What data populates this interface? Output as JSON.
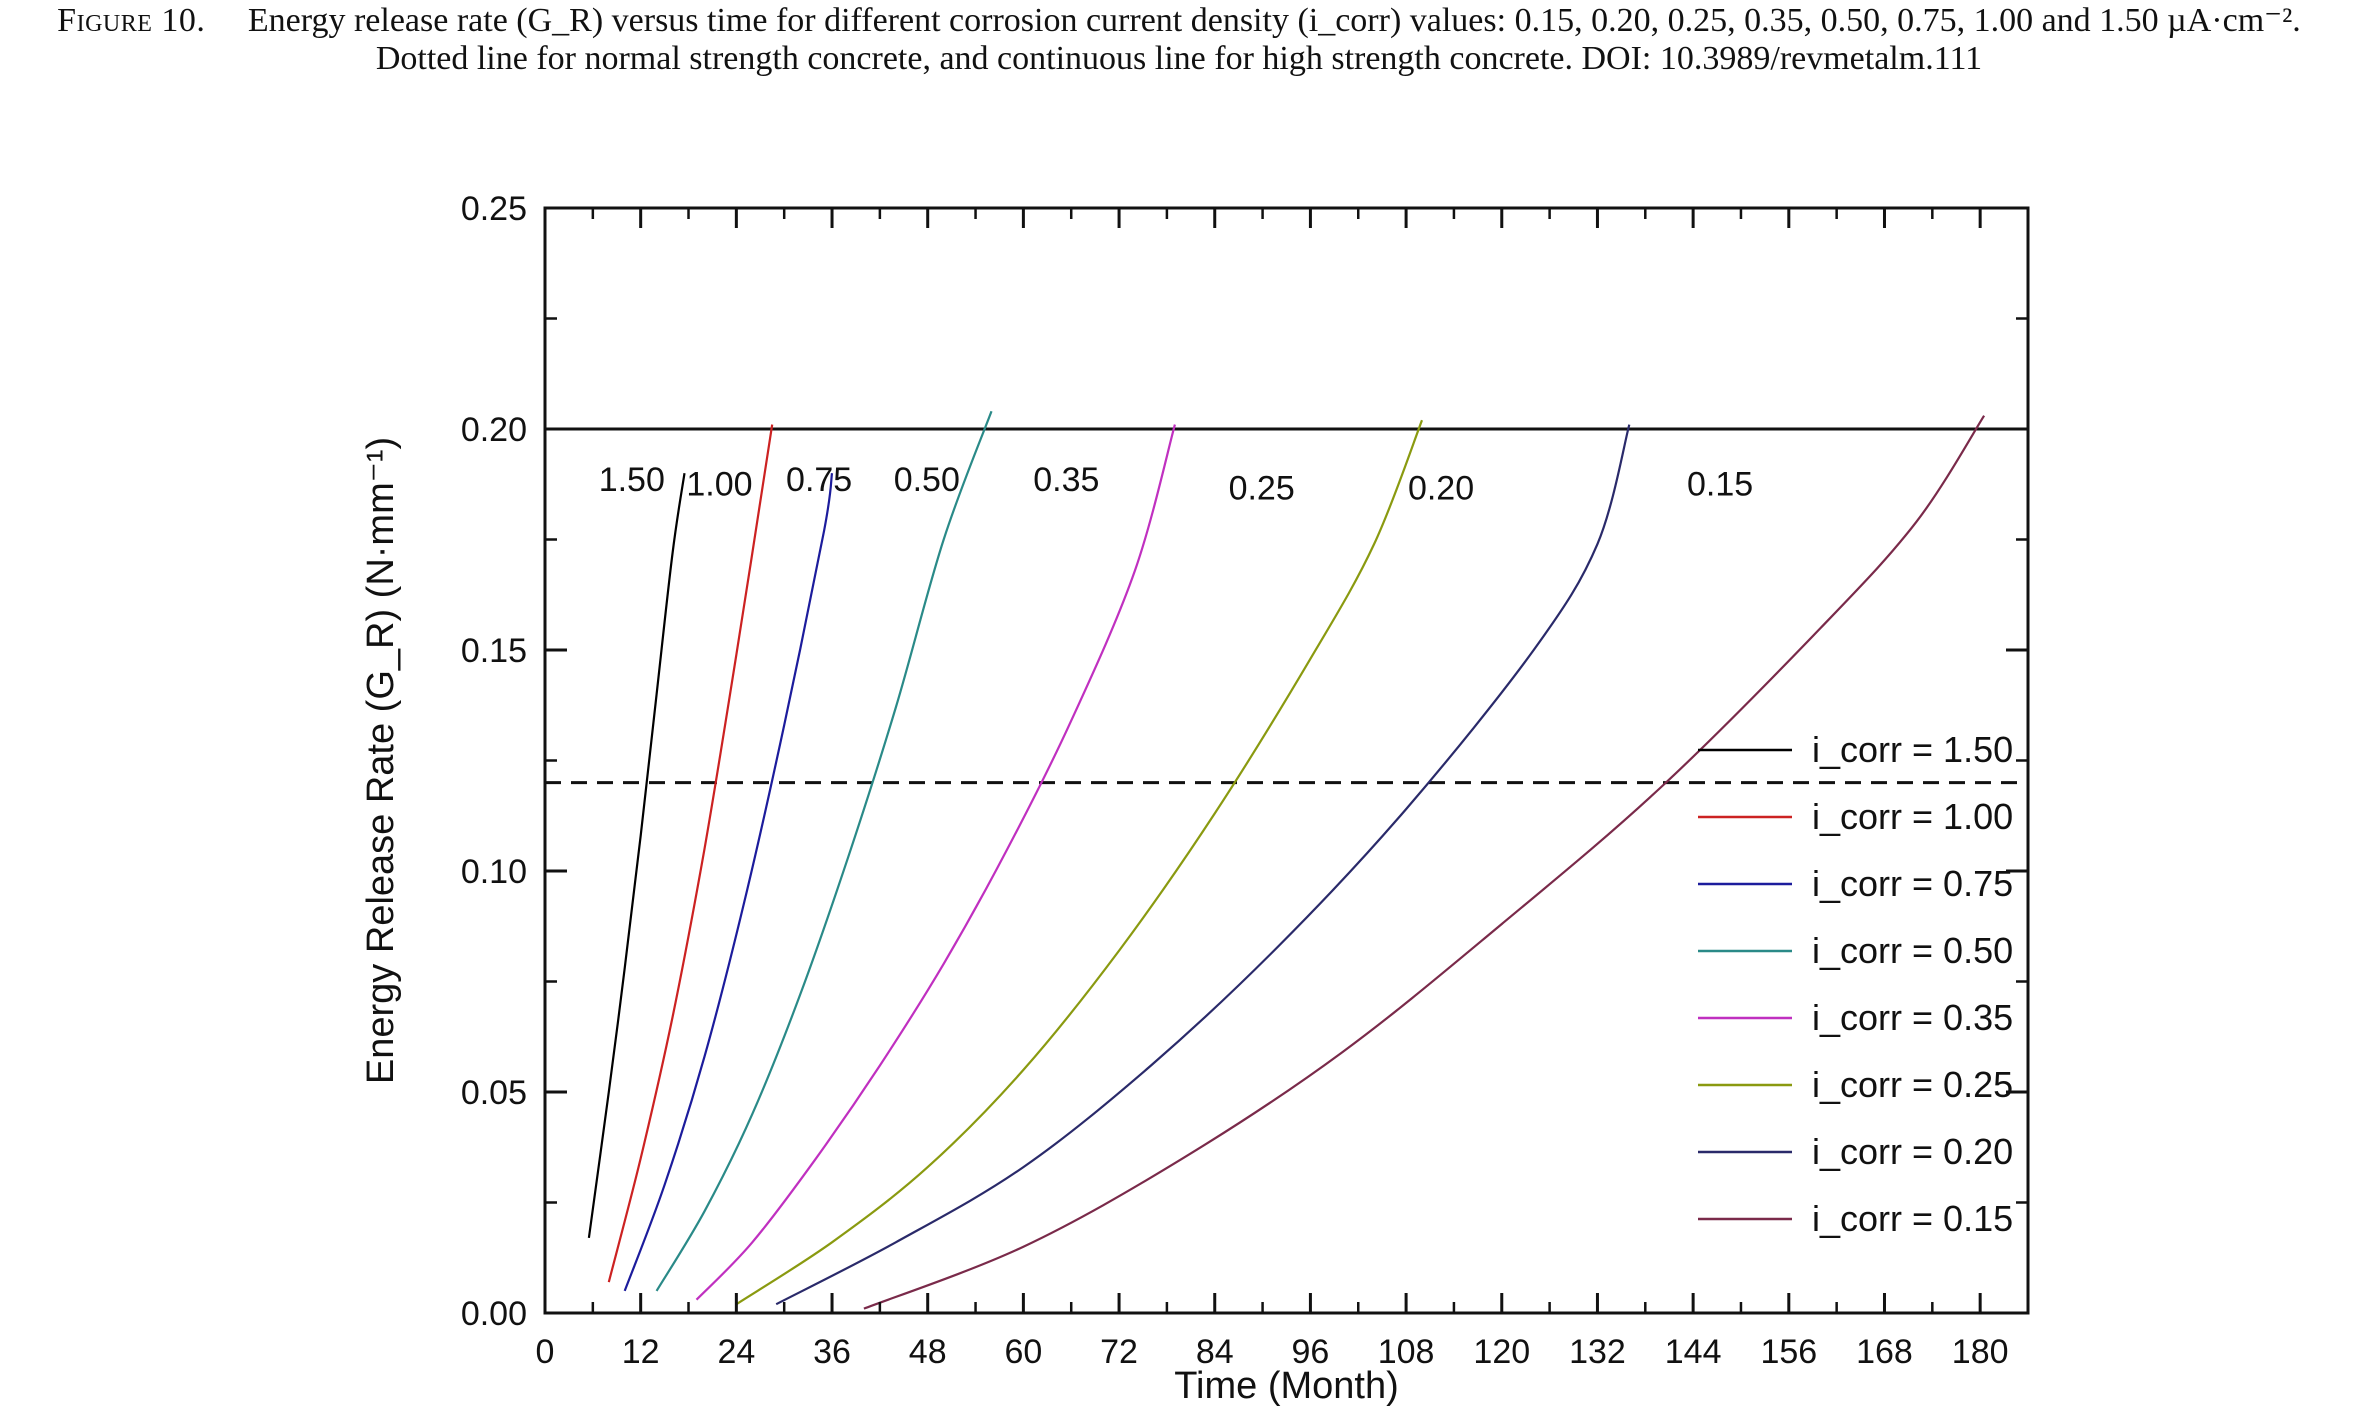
{
  "caption": {
    "figure_label": "Figure 10.",
    "text": "Energy release rate (G_R) versus time for different corrosion current density (i_corr) values: 0.15, 0.20, 0.25, 0.35, 0.50, 0.75, 1.00 and 1.50 µA·cm⁻². Dotted line for normal strength concrete, and continuous line for high strength concrete. DOI: 10.3989/revmetalm.111"
  },
  "chart_data": {
    "type": "line",
    "title": "",
    "xlabel": "Time (Month)",
    "ylabel": "Energy Release Rate (G_R) (N·mm⁻¹)",
    "xlim": [
      0,
      186
    ],
    "ylim": [
      0,
      0.25
    ],
    "xticks": [
      "0",
      "12",
      "24",
      "36",
      "48",
      "60",
      "72",
      "84",
      "96",
      "108",
      "120",
      "132",
      "144",
      "156",
      "168",
      "180"
    ],
    "yticks": [
      "0.00",
      "0.05",
      "0.10",
      "0.15",
      "0.20",
      "0.25"
    ],
    "reference_lines": [
      {
        "label": "high strength concrete",
        "y": 0.2,
        "style": "solid"
      },
      {
        "label": "normal strength concrete",
        "y": 0.12,
        "style": "dashed"
      }
    ],
    "legend_position": "bottom-right",
    "series": [
      {
        "name": "i_corr = 1.50",
        "label": "1.50",
        "color": "#000000",
        "x": [
          5.5,
          8,
          10,
          12,
          14,
          16,
          17.5
        ],
        "y": [
          0.017,
          0.05,
          0.078,
          0.108,
          0.14,
          0.172,
          0.19
        ]
      },
      {
        "name": "i_corr = 1.00",
        "label": "1.00",
        "color": "#cc2222",
        "x": [
          8,
          12,
          16,
          20,
          24,
          28.5
        ],
        "y": [
          0.007,
          0.035,
          0.067,
          0.105,
          0.149,
          0.201
        ]
      },
      {
        "name": "i_corr = 0.75",
        "label": "0.75",
        "color": "#1c1c9c",
        "x": [
          10,
          15,
          20,
          25,
          30,
          35,
          36
        ],
        "y": [
          0.005,
          0.029,
          0.058,
          0.093,
          0.133,
          0.177,
          0.19
        ]
      },
      {
        "name": "i_corr = 0.50",
        "label": "0.50",
        "color": "#2a8a88",
        "x": [
          14,
          20,
          26,
          32,
          38,
          44,
          50,
          56
        ],
        "y": [
          0.005,
          0.023,
          0.045,
          0.072,
          0.103,
          0.137,
          0.175,
          0.204
        ]
      },
      {
        "name": "i_corr = 0.35",
        "label": "0.35",
        "color": "#c030c0",
        "x": [
          19,
          26,
          34,
          42,
          50,
          58,
          66,
          74,
          79
        ],
        "y": [
          0.003,
          0.016,
          0.035,
          0.056,
          0.079,
          0.105,
          0.134,
          0.168,
          0.201
        ]
      },
      {
        "name": "i_corr = 0.25",
        "label": "0.25",
        "color": "#8a9a10",
        "x": [
          24,
          36,
          48,
          60,
          72,
          84,
          96,
          104,
          110
        ],
        "y": [
          0.002,
          0.016,
          0.033,
          0.055,
          0.082,
          0.113,
          0.148,
          0.174,
          0.202
        ]
      },
      {
        "name": "i_corr = 0.20",
        "label": "0.20",
        "color": "#2a2a6a",
        "x": [
          29,
          44,
          60,
          76,
          92,
          108,
          124,
          132,
          136
        ],
        "y": [
          0.002,
          0.016,
          0.033,
          0.056,
          0.083,
          0.114,
          0.15,
          0.174,
          0.201
        ]
      },
      {
        "name": "i_corr = 0.15",
        "label": "0.15",
        "color": "#7a2a4a",
        "x": [
          40,
          60,
          80,
          100,
          120,
          140,
          160,
          172,
          180.5
        ],
        "y": [
          0.001,
          0.015,
          0.035,
          0.059,
          0.088,
          0.119,
          0.155,
          0.179,
          0.203
        ]
      }
    ]
  }
}
